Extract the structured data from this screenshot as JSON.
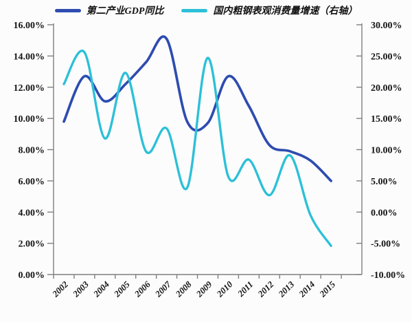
{
  "chart_data": {
    "type": "line",
    "title": "",
    "categories": [
      "2002",
      "2003",
      "2004",
      "2005",
      "2006",
      "2007",
      "2008",
      "2009",
      "2010",
      "2011",
      "2012",
      "2013",
      "2014",
      "2015"
    ],
    "series": [
      {
        "name": "第二产业GDP同比",
        "axis": "left",
        "color": "#2e4cb0",
        "values": [
          9.8,
          12.7,
          11.1,
          12.2,
          13.6,
          15.1,
          9.8,
          9.7,
          12.7,
          10.8,
          8.3,
          7.9,
          7.3,
          6.0
        ]
      },
      {
        "name": "国内粗钢表观消费量增速（右轴）",
        "axis": "right",
        "color": "#2cc0d8",
        "values": [
          20.5,
          25.6,
          11.8,
          22.3,
          9.7,
          13.4,
          3.9,
          24.7,
          5.7,
          8.4,
          2.7,
          9.1,
          -0.5,
          -5.4
        ]
      }
    ],
    "left_axis": {
      "min": 0,
      "max": 16,
      "step": 2,
      "labels": [
        "16.00%",
        "14.00%",
        "12.00%",
        "10.00%",
        "8.00%",
        "6.00%",
        "4.00%",
        "2.00%",
        "0.00%"
      ]
    },
    "right_axis": {
      "min": -10,
      "max": 30,
      "step": 5,
      "labels": [
        "30.00%",
        "25.00%",
        "20.00%",
        "15.00%",
        "10.00%",
        "5.00%",
        "0.00%",
        "-5.00%",
        "-10.00%"
      ]
    },
    "grid": false,
    "legend_position": "top",
    "axis_color": "#7f7f7f",
    "label_color": "#151515"
  }
}
